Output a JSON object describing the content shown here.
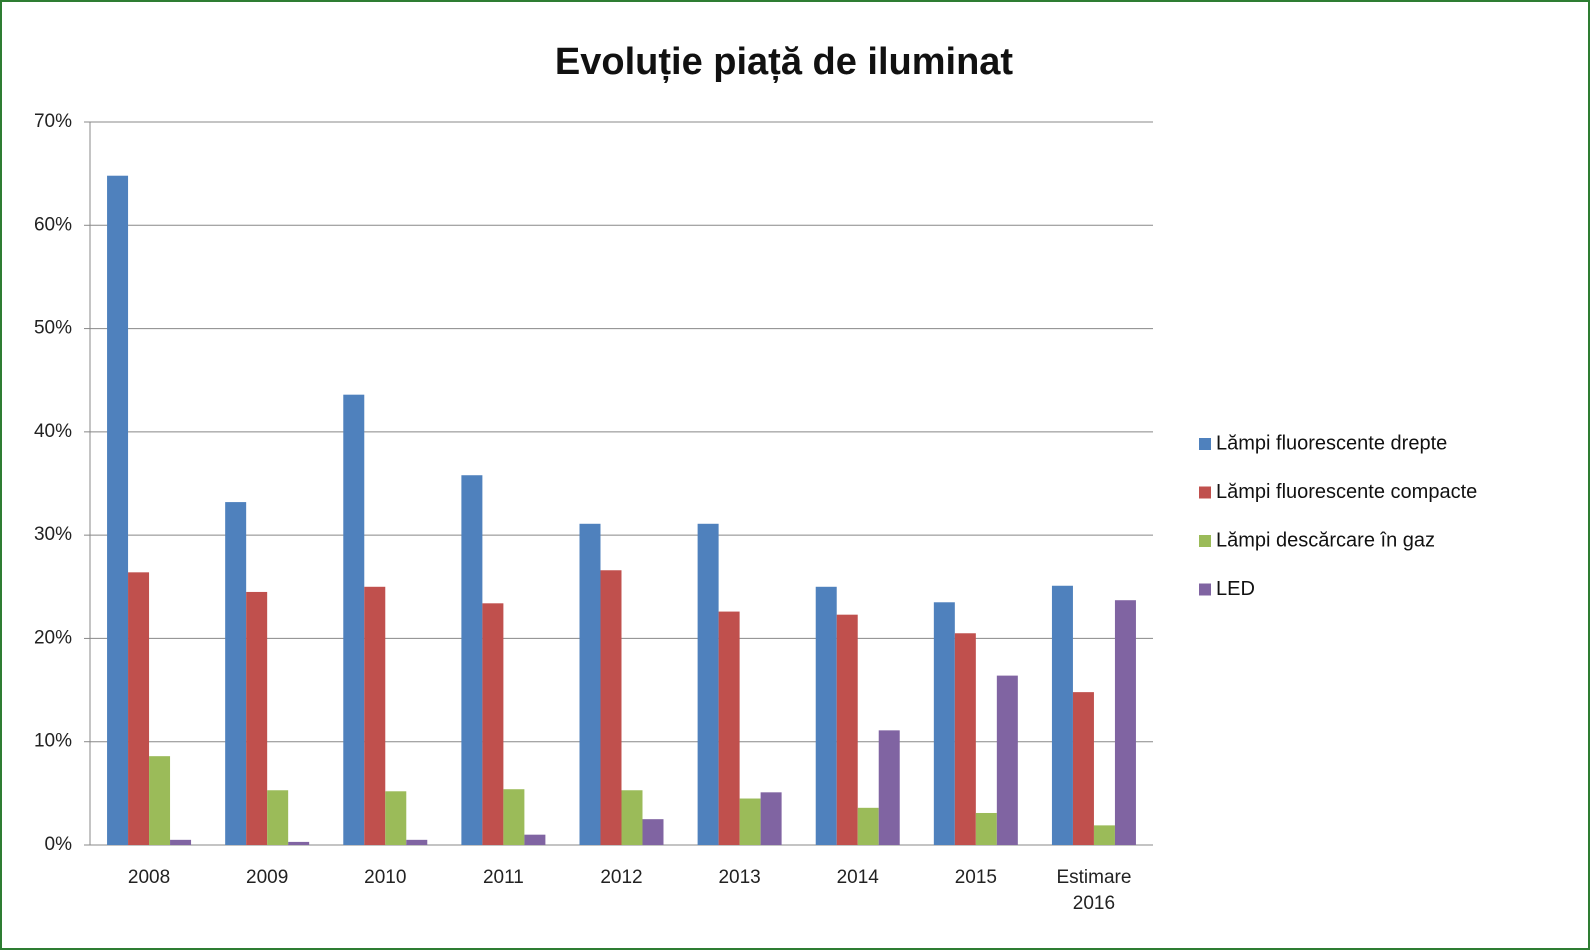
{
  "chart_data": {
    "type": "bar",
    "title": "Evoluție piață de iluminat",
    "categories": [
      "2008",
      "2009",
      "2010",
      "2011",
      "2012",
      "2013",
      "2014",
      "2015",
      "Estimare 2016"
    ],
    "series": [
      {
        "name": "Lămpi fluorescente drepte",
        "color": "#4f81bd",
        "values": [
          64.8,
          33.2,
          43.6,
          35.8,
          31.1,
          31.1,
          25.0,
          23.5,
          25.1
        ]
      },
      {
        "name": "Lămpi fluorescente compacte",
        "color": "#c0504d",
        "values": [
          26.4,
          24.5,
          25.0,
          23.4,
          26.6,
          22.6,
          22.3,
          20.5,
          14.8
        ]
      },
      {
        "name": "Lămpi descărcare în gaz",
        "color": "#9bbb59",
        "values": [
          8.6,
          5.3,
          5.2,
          5.4,
          5.3,
          4.5,
          3.6,
          3.1,
          1.9
        ]
      },
      {
        "name": "LED",
        "color": "#8064a2",
        "values": [
          0.5,
          0.3,
          0.5,
          1.0,
          2.5,
          5.1,
          11.1,
          16.4,
          23.7
        ]
      }
    ],
    "ylim": [
      0,
      70
    ],
    "yticks": [
      {
        "value": 0,
        "label": "0%"
      },
      {
        "value": 10,
        "label": "10%"
      },
      {
        "value": 20,
        "label": "20%"
      },
      {
        "value": 30,
        "label": "30%"
      },
      {
        "value": 40,
        "label": "40%"
      },
      {
        "value": 50,
        "label": "50%"
      },
      {
        "value": 60,
        "label": "60%"
      },
      {
        "value": 70,
        "label": "70%"
      }
    ],
    "grid": true,
    "legend": "right"
  }
}
